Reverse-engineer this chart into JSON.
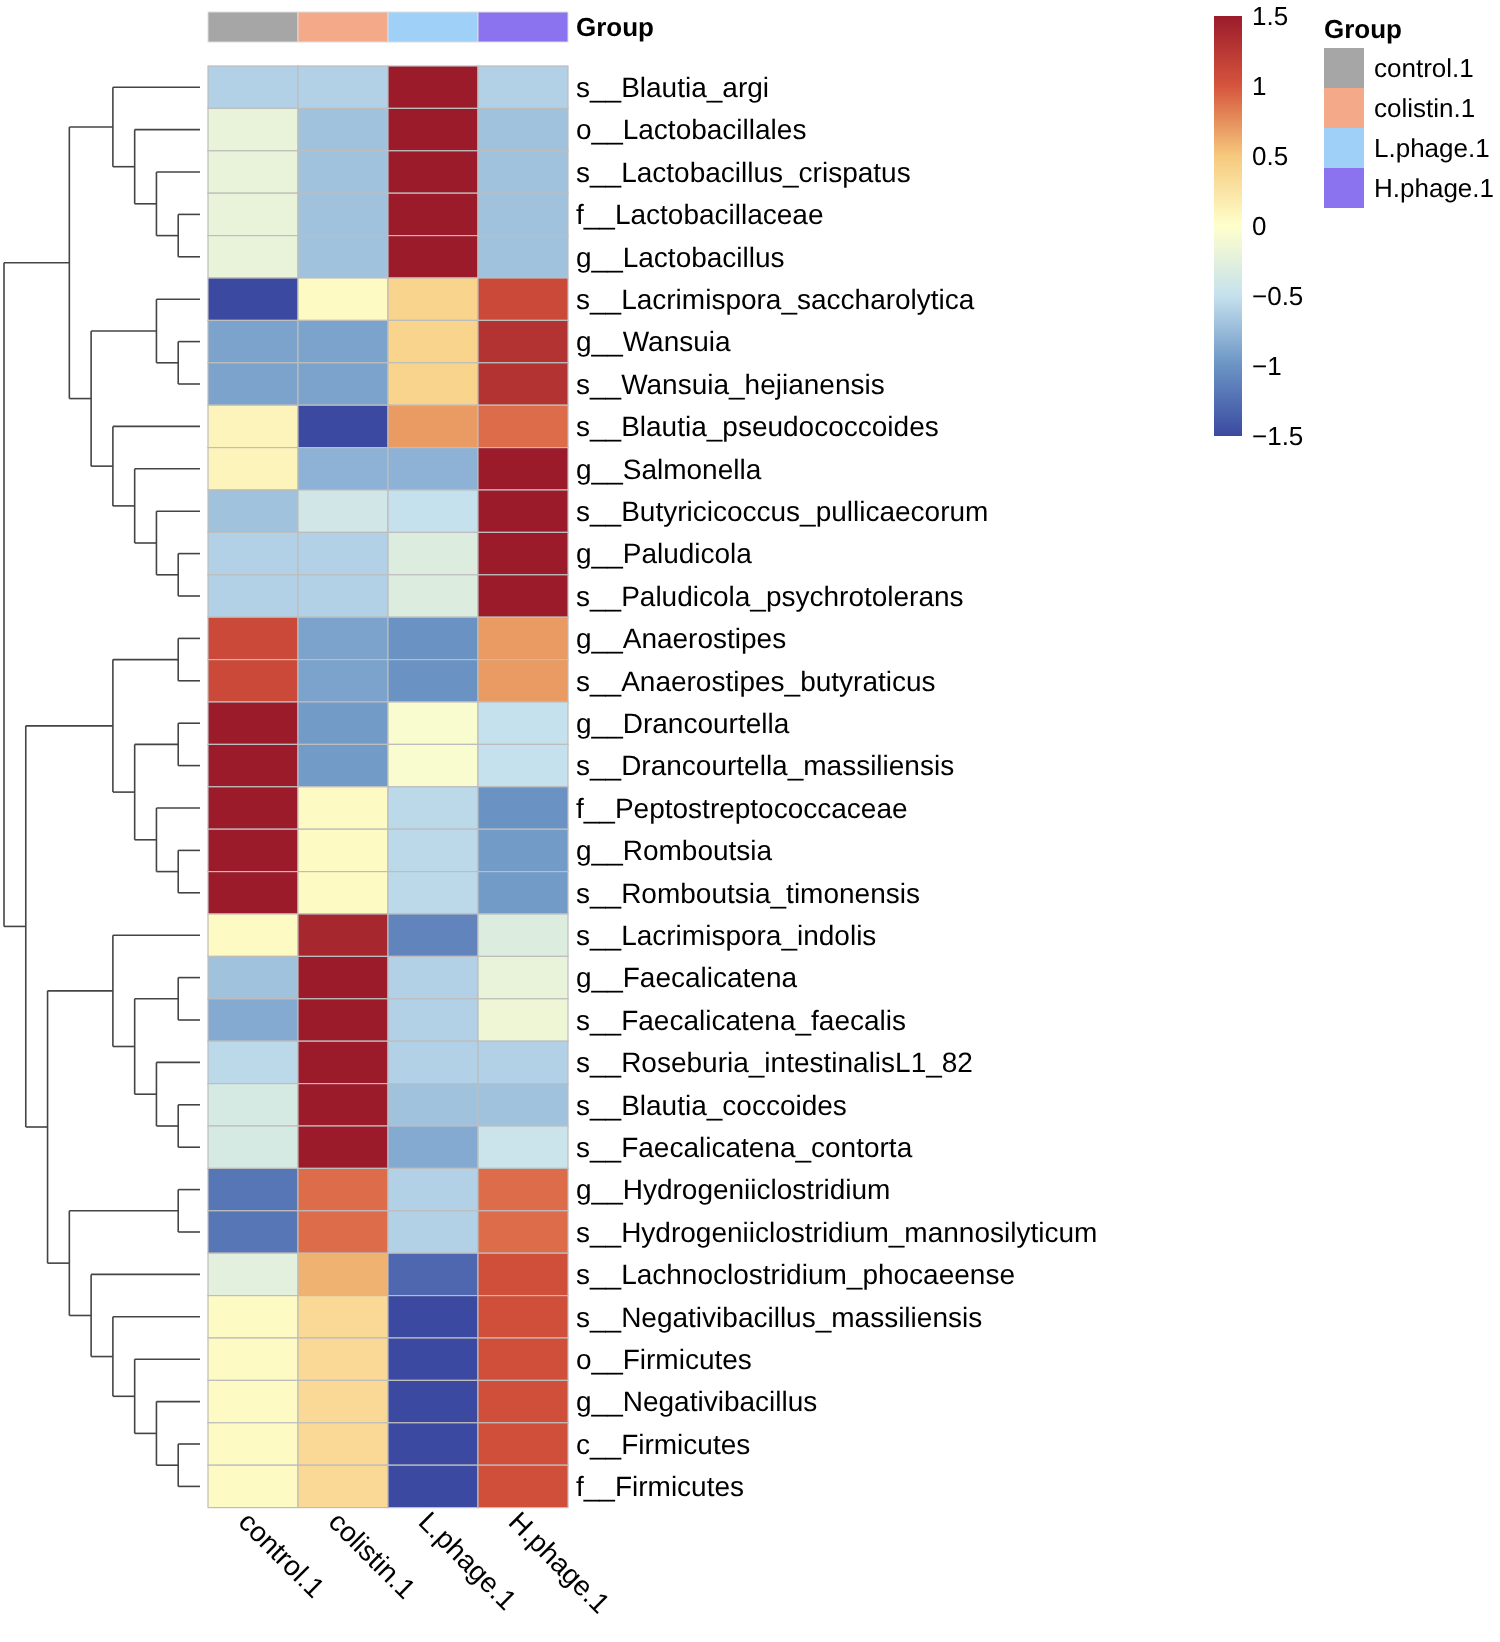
{
  "chart_data": {
    "type": "heatmap",
    "categories": [
      "control.1",
      "colistin.1",
      "L.phage.1",
      "H.phage.1"
    ],
    "colors": [
      "#a6a6a6",
      "#f4a988",
      "#9fd0f7",
      "#8b73f0"
    ],
    "legend_title": "Group",
    "annotations": [
      "Group"
    ],
    "y_categories": [
      "s__Blautia_argi",
      "o__Lactobacillales",
      "s__Lactobacillus_crispatus",
      "f__Lactobacillaceae",
      "g__Lactobacillus",
      "s__Lacrimispora_saccharolytica",
      "g__Wansuia",
      "s__Wansuia_hejianensis",
      "s__Blautia_pseudococcoides",
      "g__Salmonella",
      "s__Butyricicoccus_pullicaecorum",
      "g__Paludicola",
      "s__Paludicola_psychrotolerans",
      "g__Anaerostipes",
      "s__Anaerostipes_butyraticus",
      "g__Drancourtella",
      "s__Drancourtella_massiliensis",
      "f__Peptostreptococcaceae",
      "g__Romboutsia",
      "s__Romboutsia_timonensis",
      "s__Lacrimispora_indolis",
      "g__Faecalicatena",
      "s__Faecalicatena_faecalis",
      "s__Roseburia_intestinalisL1_82",
      "s__Blautia_coccoides",
      "s__Faecalicatena_contorta",
      "g__Hydrogeniiclostridium",
      "s__Hydrogeniiclostridium_mannosilyticum",
      "s__Lachnoclostridium_phocaeense",
      "s__Negativibacillus_massiliensis",
      "o__Firmicutes",
      "g__Negativibacillus",
      "c__Firmicutes",
      "f__Firmicutes"
    ],
    "cells": [
      [
        -0.6,
        -0.6,
        1.5,
        -0.6
      ],
      [
        -0.2,
        -0.7,
        1.5,
        -0.7
      ],
      [
        -0.2,
        -0.7,
        1.5,
        -0.7
      ],
      [
        -0.2,
        -0.7,
        1.5,
        -0.7
      ],
      [
        -0.2,
        -0.7,
        1.5,
        -0.7
      ],
      [
        -1.5,
        0.05,
        0.4,
        1.1
      ],
      [
        -0.9,
        -0.9,
        0.4,
        1.3
      ],
      [
        -0.9,
        -0.9,
        0.4,
        1.3
      ],
      [
        0.1,
        -1.5,
        0.7,
        0.9
      ],
      [
        0.1,
        -0.8,
        -0.8,
        1.5
      ],
      [
        -0.7,
        -0.4,
        -0.5,
        1.5
      ],
      [
        -0.6,
        -0.6,
        -0.3,
        1.5
      ],
      [
        -0.6,
        -0.6,
        -0.3,
        1.5
      ],
      [
        1.1,
        -0.9,
        -1.0,
        0.7
      ],
      [
        1.1,
        -0.9,
        -1.0,
        0.7
      ],
      [
        1.5,
        -0.95,
        -0.05,
        -0.5
      ],
      [
        1.5,
        -0.95,
        -0.05,
        -0.5
      ],
      [
        1.5,
        0.05,
        -0.55,
        -1.0
      ],
      [
        1.5,
        0.05,
        -0.55,
        -0.95
      ],
      [
        1.5,
        0.05,
        -0.55,
        -0.95
      ],
      [
        0.05,
        1.4,
        -1.1,
        -0.3
      ],
      [
        -0.7,
        1.5,
        -0.6,
        -0.2
      ],
      [
        -0.85,
        1.5,
        -0.6,
        -0.15
      ],
      [
        -0.55,
        1.5,
        -0.6,
        -0.6
      ],
      [
        -0.35,
        1.5,
        -0.7,
        -0.7
      ],
      [
        -0.35,
        1.5,
        -0.85,
        -0.45
      ],
      [
        -1.2,
        0.9,
        -0.6,
        0.9
      ],
      [
        -1.2,
        0.9,
        -0.6,
        0.9
      ],
      [
        -0.25,
        0.6,
        -1.3,
        1.05
      ],
      [
        0.05,
        0.35,
        -1.5,
        1.05
      ],
      [
        0.05,
        0.35,
        -1.5,
        1.05
      ],
      [
        0.05,
        0.35,
        -1.5,
        1.05
      ],
      [
        0.05,
        0.35,
        -1.5,
        1.05
      ],
      [
        0.05,
        0.35,
        -1.5,
        1.05
      ]
    ],
    "clim": [
      -1.5,
      1.5
    ],
    "cticks": [
      {
        "value": -1.5,
        "label": "−1.5"
      },
      {
        "value": -1,
        "label": "−1"
      },
      {
        "value": -0.5,
        "label": "−0.5"
      },
      0,
      0.5,
      1,
      1.5
    ]
  }
}
